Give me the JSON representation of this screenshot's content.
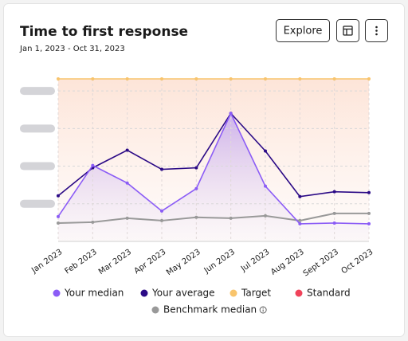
{
  "buttons": {
    "explore": "Explore"
  },
  "chart_data": {
    "type": "line",
    "title": "Time to first response",
    "subtitle": "Jan 1, 2023 - Oct 31, 2023",
    "categories": [
      "Jan 2023",
      "Feb 2023",
      "Mar 2023",
      "Apr 2023",
      "May 2023",
      "Jun 2023",
      "Jul 2023",
      "Aug 2023",
      "Sept 2023",
      "Oct 2023"
    ],
    "series": [
      {
        "name": "Your median",
        "color": "#8b5cf6",
        "values": [
          16.5,
          50.5,
          38.8,
          20.2,
          35.1,
          85.1,
          36.7,
          11.7,
          12.2,
          11.7
        ]
      },
      {
        "name": "Your average",
        "color": "#2b0a86",
        "values": [
          30.3,
          48.9,
          60.6,
          47.9,
          48.9,
          85.1,
          60.1,
          29.8,
          33.0,
          32.4
        ]
      },
      {
        "name": "Target",
        "color": "#f8c46c",
        "values": [
          108,
          108,
          108,
          108,
          108,
          108,
          108,
          108,
          108,
          108
        ]
      },
      {
        "name": "Standard",
        "color": "#f0435a",
        "values": [
          null,
          null,
          null,
          null,
          null,
          null,
          null,
          null,
          null,
          null
        ]
      },
      {
        "name": "Benchmark median",
        "color": "#999999",
        "values": [
          12.2,
          12.8,
          15.4,
          13.8,
          16.0,
          15.4,
          17.0,
          13.8,
          18.6,
          18.6
        ]
      }
    ],
    "ylim": [
      0,
      108
    ],
    "yticks": [
      0,
      25,
      50,
      75,
      100
    ],
    "grid": true
  }
}
